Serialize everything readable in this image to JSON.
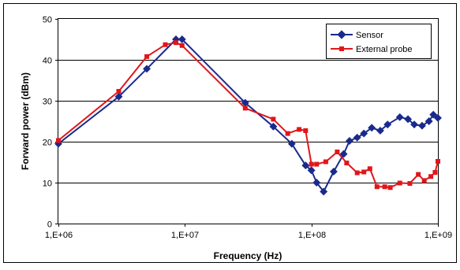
{
  "chart_data": {
    "type": "line",
    "xscale": "log",
    "xlim": [
      1000000,
      1000000000
    ],
    "ylim": [
      0,
      50
    ],
    "grid": true,
    "legend_position": "top-right",
    "xlabel": "Frequency (Hz)",
    "ylabel": "Forward power (dBm)",
    "x_tick_labels": [
      "1,E+06",
      "1,E+07",
      "1,E+08",
      "1,E+09"
    ],
    "y_tick_labels": [
      "0",
      "10",
      "20",
      "30",
      "40",
      "50"
    ],
    "series": [
      {
        "name": "Sensor",
        "color": "#1a2a8c",
        "marker": "diamond",
        "points": [
          [
            1000000,
            19.5
          ],
          [
            3000000,
            31
          ],
          [
            5000000,
            37.8
          ],
          [
            8500000,
            45
          ],
          [
            9500000,
            45
          ],
          [
            30000000,
            29.5
          ],
          [
            50000000,
            23.7
          ],
          [
            70000000,
            19.5
          ],
          [
            90000000,
            14.2
          ],
          [
            100000000,
            13
          ],
          [
            110000000,
            10
          ],
          [
            125000000,
            7.8
          ],
          [
            150000000,
            12.7
          ],
          [
            180000000,
            17
          ],
          [
            200000000,
            20.2
          ],
          [
            230000000,
            21
          ],
          [
            260000000,
            22
          ],
          [
            300000000,
            23.4
          ],
          [
            350000000,
            22.7
          ],
          [
            400000000,
            24.2
          ],
          [
            500000000,
            26
          ],
          [
            580000000,
            25.5
          ],
          [
            650000000,
            24.2
          ],
          [
            750000000,
            23.9
          ],
          [
            850000000,
            25
          ],
          [
            920000000,
            26.6
          ],
          [
            1000000000,
            25.8
          ]
        ]
      },
      {
        "name": "External probe",
        "color": "#e0161b",
        "marker": "square",
        "points": [
          [
            1000000,
            20.3
          ],
          [
            3000000,
            32.3
          ],
          [
            5000000,
            40.8
          ],
          [
            7000000,
            43.7
          ],
          [
            8500000,
            44.2
          ],
          [
            9500000,
            43.5
          ],
          [
            30000000,
            28.2
          ],
          [
            50000000,
            25.5
          ],
          [
            65000000,
            22
          ],
          [
            80000000,
            23
          ],
          [
            90000000,
            22.7
          ],
          [
            100000000,
            14.5
          ],
          [
            110000000,
            14.5
          ],
          [
            130000000,
            15.1
          ],
          [
            160000000,
            17.5
          ],
          [
            190000000,
            14.8
          ],
          [
            230000000,
            12.4
          ],
          [
            260000000,
            12.6
          ],
          [
            290000000,
            13.4
          ],
          [
            330000000,
            9
          ],
          [
            380000000,
            9
          ],
          [
            420000000,
            8.8
          ],
          [
            500000000,
            9.9
          ],
          [
            600000000,
            9.8
          ],
          [
            700000000,
            12
          ],
          [
            780000000,
            10.5
          ],
          [
            880000000,
            11.5
          ],
          [
            950000000,
            12.5
          ],
          [
            1000000000,
            15.2
          ]
        ]
      }
    ]
  }
}
